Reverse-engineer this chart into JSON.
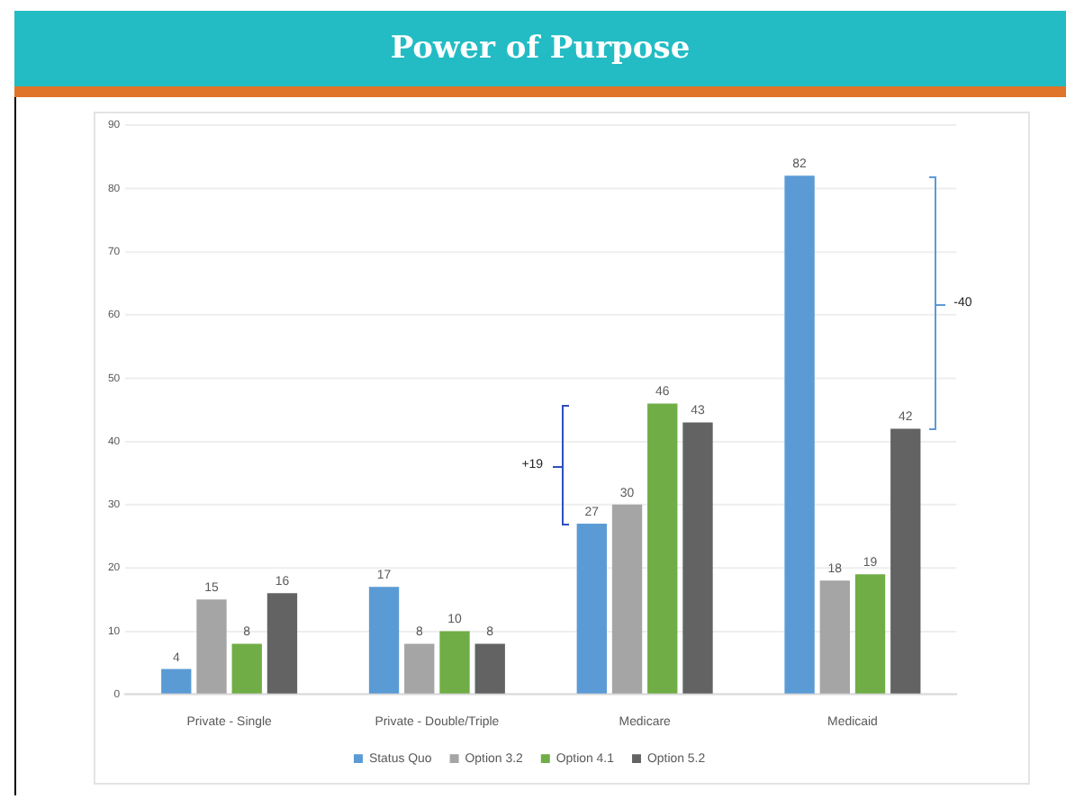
{
  "chart_data": {
    "type": "bar",
    "title": "Power of Purpose",
    "categories": [
      "Private - Single",
      "Private - Double/Triple",
      "Medicare",
      "Medicaid"
    ],
    "series": [
      {
        "name": "Status Quo",
        "color": "#5b9bd5",
        "values": [
          4,
          17,
          27,
          82
        ]
      },
      {
        "name": "Option 3.2",
        "color": "#a5a5a5",
        "values": [
          15,
          8,
          30,
          18
        ]
      },
      {
        "name": "Option 4.1",
        "color": "#70ad47",
        "values": [
          8,
          10,
          46,
          19
        ]
      },
      {
        "name": "Option 5.2",
        "color": "#636363",
        "values": [
          16,
          8,
          43,
          42
        ]
      }
    ],
    "ylim": [
      0,
      90
    ],
    "yticks": [
      0,
      10,
      20,
      30,
      40,
      50,
      60,
      70,
      80,
      90
    ],
    "grid": "y",
    "legend": "bottom",
    "data_labels": true,
    "annotations": [
      "+19",
      "-40"
    ]
  }
}
